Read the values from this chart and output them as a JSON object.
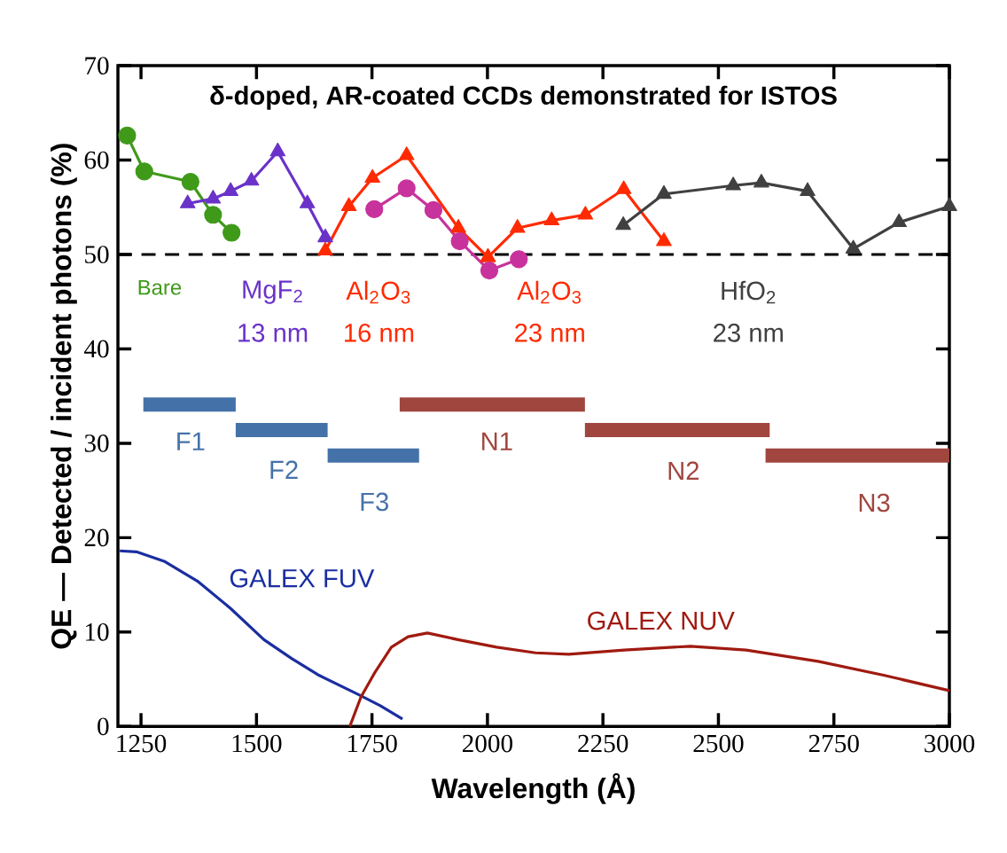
{
  "chart_data": {
    "type": "line",
    "title": "δ-doped, AR-coated CCDs demonstrated for ISTOS",
    "xlabel": "Wavelength (Å)",
    "ylabel": "QE — Detected / incident photons (%)",
    "xlim": [
      1200,
      3000
    ],
    "ylim": [
      0,
      70
    ],
    "xticks": [
      1250,
      1500,
      1750,
      2000,
      2250,
      2500,
      2750,
      3000
    ],
    "yticks": [
      0,
      10,
      20,
      30,
      40,
      50,
      60,
      70
    ],
    "annotations": [
      "13 nm",
      "16 nm",
      "23 nm",
      "23 nm"
    ],
    "ref_lines": [
      {
        "axis": "y",
        "value": 50,
        "color": "#000000",
        "line_style": "dashed"
      }
    ],
    "series": [
      {
        "name": "Bare",
        "color": "#3f9a1a",
        "marker": "circle",
        "x": [
          1220,
          1257,
          1357,
          1406,
          1446
        ],
        "values": [
          62.6,
          58.8,
          57.7,
          54.2,
          52.3
        ]
      },
      {
        "name": "MgF$_{2}$",
        "color": "#6a32c8",
        "marker": "triangle",
        "x": [
          1351,
          1406,
          1444,
          1489,
          1546,
          1610,
          1649
        ],
        "values": [
          55.4,
          55.9,
          56.7,
          57.8,
          60.9,
          55.4,
          51.8
        ]
      },
      {
        "name": "Al$_{2}$O$_{3}$",
        "color": "#ff2a00",
        "marker": "triangle",
        "x": [
          1649,
          1700,
          1751,
          1825,
          1937,
          2001
        ],
        "values": [
          50.4,
          55.1,
          58.1,
          60.5,
          52.8,
          49.7
        ]
      },
      {
        "name": "Al$_{2}$O$_{3}$",
        "color": "#ff2a00",
        "marker": "triangle",
        "x": [
          2001,
          2065,
          2139,
          2212,
          2295,
          2382
        ],
        "values": [
          49.7,
          52.8,
          53.6,
          54.2,
          56.9,
          51.4
        ]
      },
      {
        "color": "#c8329c",
        "marker": "circle",
        "x": [
          1755,
          1825,
          1883,
          1940,
          2004,
          2068
        ],
        "values": [
          54.8,
          57.0,
          54.7,
          51.4,
          48.3,
          49.5
        ]
      },
      {
        "name": "HfO$_{2}$",
        "color": "#404040",
        "marker": "triangle",
        "x": [
          2294,
          2382,
          2532,
          2593,
          2693,
          2792,
          2891,
          3000
        ],
        "values": [
          53.1,
          56.4,
          57.3,
          57.6,
          56.7,
          50.6,
          53.4,
          55.1
        ]
      },
      {
        "name": "F1",
        "color": "#4472a8",
        "marker": "none",
        "x": [
          1255,
          1455
        ],
        "values": [
          34.1,
          34.1
        ]
      },
      {
        "name": "F2",
        "color": "#4472a8",
        "marker": "none",
        "x": [
          1455,
          1654
        ],
        "values": [
          31.4,
          31.4
        ]
      },
      {
        "name": "F3",
        "color": "#4472a8",
        "marker": "none",
        "x": [
          1654,
          1852
        ],
        "values": [
          28.7,
          28.7
        ]
      },
      {
        "name": "N1",
        "color": "#a0463f",
        "marker": "none",
        "x": [
          1810,
          2211
        ],
        "values": [
          34.1,
          34.1
        ]
      },
      {
        "name": "N2",
        "color": "#a0463f",
        "marker": "none",
        "x": [
          2211,
          2611
        ],
        "values": [
          31.4,
          31.4
        ]
      },
      {
        "name": "N3",
        "color": "#a0463f",
        "marker": "none",
        "x": [
          2602,
          3000
        ],
        "values": [
          28.7,
          28.7
        ]
      },
      {
        "name": "GALEX FUV",
        "color": "#1a2ea0",
        "marker": "none",
        "x": [
          1204,
          1240,
          1300,
          1372,
          1444,
          1516,
          1576,
          1636,
          1720,
          1768,
          1816
        ],
        "values": [
          18.6,
          18.5,
          17.5,
          15.4,
          12.5,
          9.2,
          7.2,
          5.4,
          3.4,
          2.2,
          0.8
        ]
      },
      {
        "name": "GALEX NUV",
        "color": "#a01a10",
        "marker": "none",
        "x": [
          1702,
          1726,
          1756,
          1792,
          1828,
          1870,
          1936,
          2020,
          2104,
          2176,
          2296,
          2440,
          2560,
          2716,
          2860,
          3000
        ],
        "values": [
          0,
          3.1,
          5.7,
          8.4,
          9.5,
          9.9,
          9.2,
          8.4,
          7.8,
          7.65,
          8.1,
          8.5,
          8.1,
          6.9,
          5.4,
          3.8
        ]
      }
    ]
  }
}
